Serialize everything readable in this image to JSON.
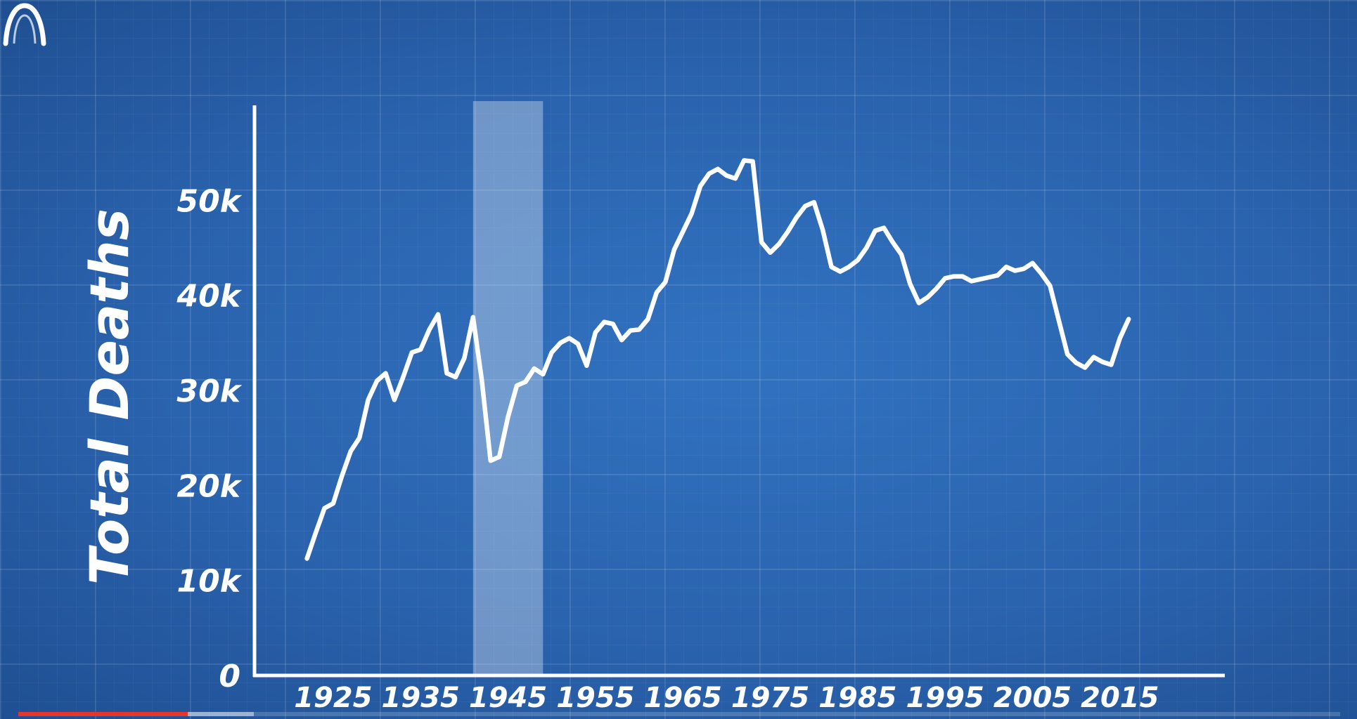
{
  "chart_data": {
    "type": "line",
    "title": "",
    "xlabel": "",
    "ylabel": "Total Deaths",
    "xlim": [
      1916,
      2027
    ],
    "ylim": [
      0,
      60000
    ],
    "xticks": [
      1925,
      1935,
      1945,
      1955,
      1965,
      1975,
      1985,
      1995,
      2005,
      2015
    ],
    "xtick_labels": [
      "1925",
      "1935",
      "1945",
      "1955",
      "1965",
      "1975",
      "1985",
      "1995",
      "2005",
      "2015"
    ],
    "yticks": [
      0,
      10000,
      20000,
      30000,
      40000,
      50000
    ],
    "ytick_labels": [
      "0",
      "10k",
      "20k",
      "30k",
      "40k",
      "50k"
    ],
    "highlight_band": [
      1941,
      1949
    ],
    "grid": true,
    "line_color": "#ffffff",
    "series": [
      {
        "name": "",
        "x": [
          1922,
          1923,
          1924,
          1925,
          1926,
          1927,
          1928,
          1929,
          1930,
          1931,
          1932,
          1933,
          1934,
          1935,
          1936,
          1937,
          1938,
          1939,
          1940,
          1941,
          1942,
          1943,
          1944,
          1945,
          1946,
          1947,
          1948,
          1949,
          1950,
          1951,
          1952,
          1953,
          1954,
          1955,
          1956,
          1957,
          1958,
          1959,
          1960,
          1961,
          1962,
          1963,
          1964,
          1965,
          1966,
          1967,
          1968,
          1969,
          1970,
          1971,
          1972,
          1973,
          1974,
          1975,
          1976,
          1977,
          1978,
          1979,
          1980,
          1981,
          1982,
          1983,
          1984,
          1985,
          1986,
          1987,
          1988,
          1989,
          1990,
          1991,
          1992,
          1993,
          1994,
          1995,
          1996,
          1997,
          1998,
          1999,
          2000,
          2001,
          2002,
          2003,
          2004,
          2005,
          2006,
          2007,
          2008,
          2009,
          2010,
          2011,
          2012,
          2013,
          2014,
          2015,
          2016
        ],
        "values": [
          12300,
          15000,
          17600,
          18100,
          21000,
          23600,
          25000,
          29000,
          31000,
          31800,
          29000,
          31400,
          34000,
          34300,
          36400,
          38000,
          31800,
          31400,
          33400,
          37700,
          31100,
          22600,
          23000,
          27200,
          30500,
          30900,
          32300,
          31700,
          34000,
          35000,
          35500,
          34900,
          32600,
          36100,
          37200,
          37000,
          35300,
          36300,
          36400,
          37500,
          40300,
          41400,
          44800,
          46700,
          48600,
          51500,
          52800,
          53300,
          52600,
          52300,
          54200,
          54100,
          45600,
          44500,
          45400,
          46700,
          48200,
          49400,
          49800,
          46900,
          43000,
          42500,
          43000,
          43700,
          45000,
          46800,
          47100,
          45600,
          44300,
          41200,
          39200,
          39800,
          40700,
          41800,
          42000,
          42000,
          41500,
          41700,
          41900,
          42100,
          43000,
          42600,
          42800,
          43400,
          42300,
          41000,
          37400,
          33800,
          32900,
          32400,
          33500,
          33000,
          32700,
          35500,
          37500
        ]
      }
    ]
  }
}
